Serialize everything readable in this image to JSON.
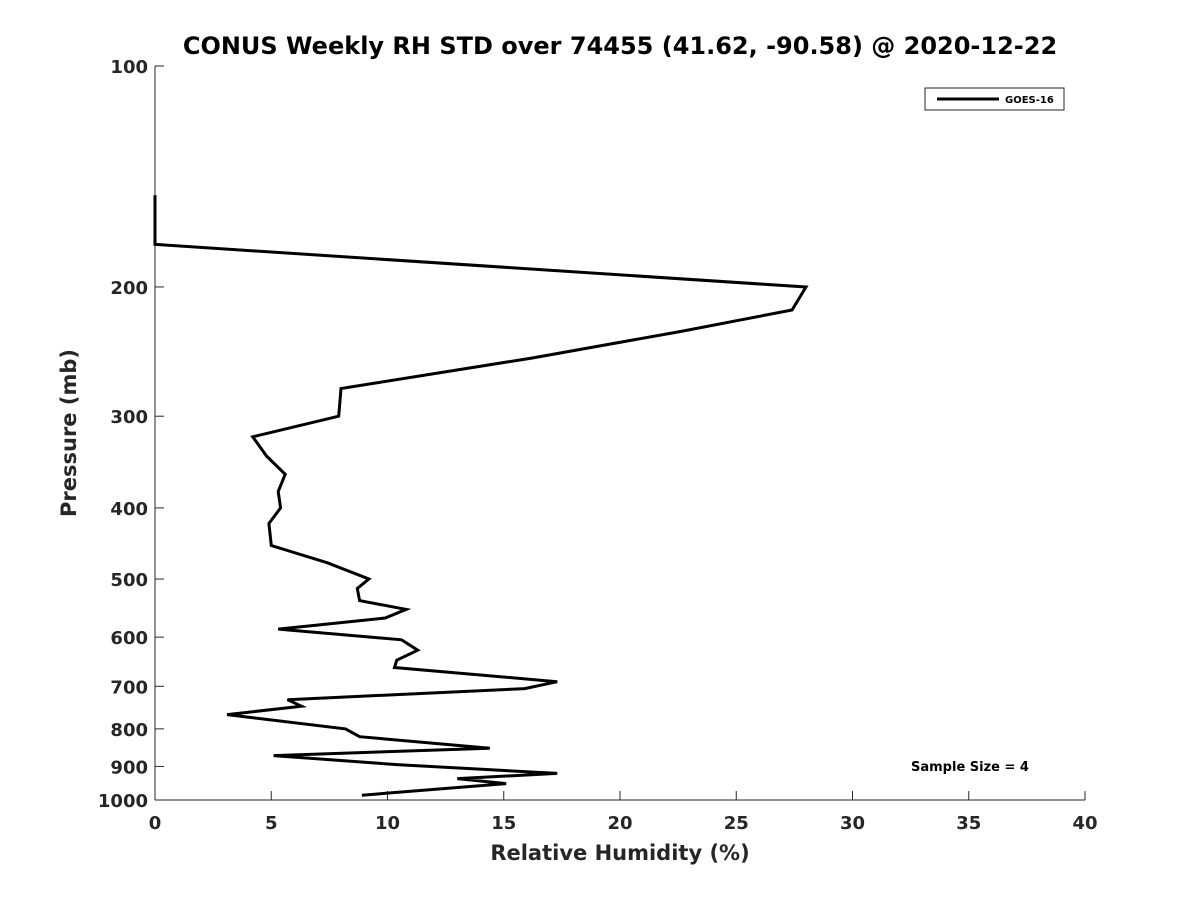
{
  "chart_data": {
    "type": "line",
    "title": "CONUS Weekly RH STD over 74455 (41.62, -90.58) @ 2020-12-22",
    "xlabel": "Relative Humidity (%)",
    "ylabel": "Pressure (mb)",
    "xlim": [
      0,
      40
    ],
    "ylim": [
      100,
      1000
    ],
    "y_scale": "log",
    "y_reversed": true,
    "xticks": [
      "0",
      "5",
      "10",
      "15",
      "20",
      "25",
      "30",
      "35",
      "40"
    ],
    "yticks": [
      "100",
      "200",
      "300",
      "400",
      "500",
      "600",
      "700",
      "800",
      "900",
      "1000"
    ],
    "grid": false,
    "legend_position": "top-right",
    "annotation": "Sample Size = 4",
    "series": [
      {
        "name": "GOES-16",
        "color": "#000000",
        "points": [
          [
            0.0,
            150
          ],
          [
            0.0,
            175
          ],
          [
            28.0,
            200
          ],
          [
            27.4,
            215
          ],
          [
            22.6,
            230
          ],
          [
            16.2,
            250
          ],
          [
            8.0,
            275
          ],
          [
            7.9,
            300
          ],
          [
            4.2,
            320
          ],
          [
            4.8,
            340
          ],
          [
            5.6,
            360
          ],
          [
            5.3,
            380
          ],
          [
            5.4,
            400
          ],
          [
            4.9,
            420
          ],
          [
            5.0,
            450
          ],
          [
            7.4,
            475
          ],
          [
            9.2,
            500
          ],
          [
            8.7,
            515
          ],
          [
            8.8,
            535
          ],
          [
            10.8,
            550
          ],
          [
            9.9,
            565
          ],
          [
            5.3,
            585
          ],
          [
            10.6,
            605
          ],
          [
            11.3,
            625
          ],
          [
            10.4,
            645
          ],
          [
            10.3,
            660
          ],
          [
            17.3,
            690
          ],
          [
            15.9,
            705
          ],
          [
            5.7,
            730
          ],
          [
            6.3,
            745
          ],
          [
            3.1,
            765
          ],
          [
            8.2,
            800
          ],
          [
            8.8,
            820
          ],
          [
            14.4,
            850
          ],
          [
            5.1,
            870
          ],
          [
            10.4,
            895
          ],
          [
            17.3,
            920
          ],
          [
            13.0,
            935
          ],
          [
            15.1,
            950
          ],
          [
            8.9,
            985
          ]
        ]
      }
    ]
  }
}
